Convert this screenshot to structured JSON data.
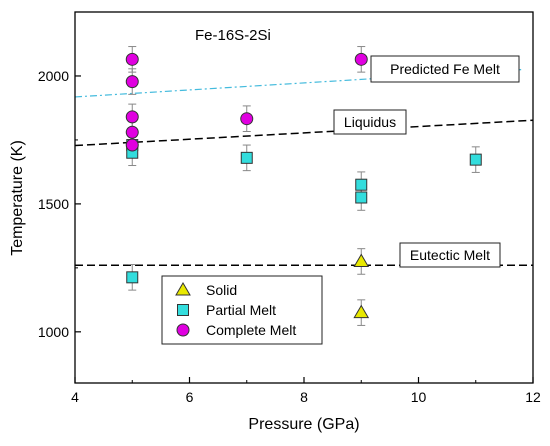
{
  "chart_data": {
    "type": "scatter",
    "title": "Fe-16S-2Si",
    "xlabel": "Pressure (GPa)",
    "ylabel": "Temperature (K)",
    "xlim": [
      4,
      12
    ],
    "ylim": [
      800,
      2250
    ],
    "xticks": [
      4,
      6,
      8,
      10,
      12
    ],
    "yticks": [
      1000,
      1500,
      2000
    ],
    "grid": false,
    "legend_position": "bottom-left",
    "series": [
      {
        "name": "Solid",
        "marker": "triangle",
        "color": "#e8e800",
        "points": [
          {
            "x": 9,
            "y": 1275,
            "err": 50
          },
          {
            "x": 9,
            "y": 1075,
            "err": 50
          }
        ]
      },
      {
        "name": "Partial Melt",
        "marker": "square",
        "color": "#33dddd",
        "points": [
          {
            "x": 5,
            "y": 1730,
            "err": 50
          },
          {
            "x": 5,
            "y": 1700,
            "err": 50
          },
          {
            "x": 5,
            "y": 1213,
            "err": 50
          },
          {
            "x": 7,
            "y": 1680,
            "err": 50
          },
          {
            "x": 9,
            "y": 1575,
            "err": 50
          },
          {
            "x": 9,
            "y": 1525,
            "err": 50
          },
          {
            "x": 11,
            "y": 1673,
            "err": 50
          }
        ]
      },
      {
        "name": "Complete Melt",
        "marker": "circle",
        "color": "#e000e0",
        "points": [
          {
            "x": 5,
            "y": 2065,
            "err": 50
          },
          {
            "x": 5,
            "y": 1978,
            "err": 50
          },
          {
            "x": 5,
            "y": 1840,
            "err": 50
          },
          {
            "x": 5,
            "y": 1780,
            "err": 50
          },
          {
            "x": 5,
            "y": 1730,
            "err": 50
          },
          {
            "x": 7,
            "y": 1833,
            "err": 50
          },
          {
            "x": 9,
            "y": 2065,
            "err": 50
          }
        ]
      }
    ],
    "lines": [
      {
        "name": "Predicted Fe Melt",
        "style": "dash-dot",
        "color": "#44bbdd",
        "x": [
          4,
          11.8
        ],
        "y": [
          1918,
          2025
        ]
      },
      {
        "name": "Liquidus",
        "style": "dashed",
        "color": "#000000",
        "x": [
          4,
          12
        ],
        "y": [
          1728,
          1827
        ]
      },
      {
        "name": "Eutectic Melt",
        "style": "dashed",
        "color": "#000000",
        "x": [
          4,
          12
        ],
        "y": [
          1260,
          1260
        ]
      }
    ],
    "annotations": [
      "Predicted Fe Melt",
      "Liquidus",
      "Eutectic Melt"
    ]
  }
}
